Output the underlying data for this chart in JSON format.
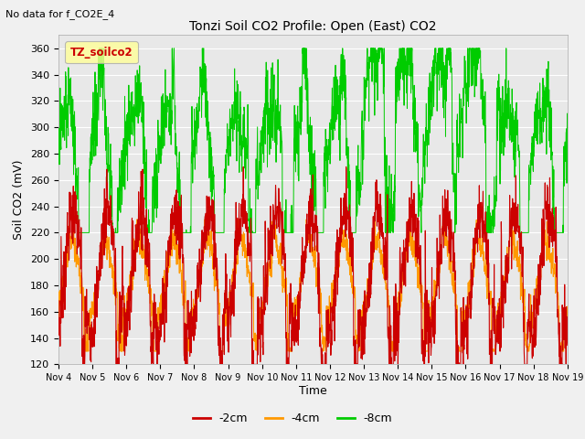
{
  "title": "Tonzi Soil CO2 Profile: Open (East) CO2",
  "subtitle": "No data for f_CO2E_4",
  "ylabel": "Soil CO2 (mV)",
  "xlabel": "Time",
  "ylim": [
    120,
    370
  ],
  "yticks": [
    120,
    140,
    160,
    180,
    200,
    220,
    240,
    260,
    280,
    300,
    320,
    340,
    360
  ],
  "xtick_labels": [
    "Nov 4",
    "Nov 5",
    "Nov 6",
    "Nov 7",
    "Nov 8",
    "Nov 9",
    "Nov 10",
    "Nov 11",
    "Nov 12",
    "Nov 13",
    "Nov 14",
    "Nov 15",
    "Nov 16",
    "Nov 17",
    "Nov 18",
    "Nov 19"
  ],
  "colors": {
    "line_2cm": "#cc0000",
    "line_4cm": "#ff9900",
    "line_8cm": "#00cc00",
    "background": "#f0f0f0",
    "plot_bg": "#e8e8e8",
    "legend_box_bg": "#ffff99",
    "legend_text": "#cc0000"
  },
  "legend_labels": [
    "-2cm",
    "-4cm",
    "-8cm"
  ],
  "legend_box_label": "TZ_soilco2"
}
